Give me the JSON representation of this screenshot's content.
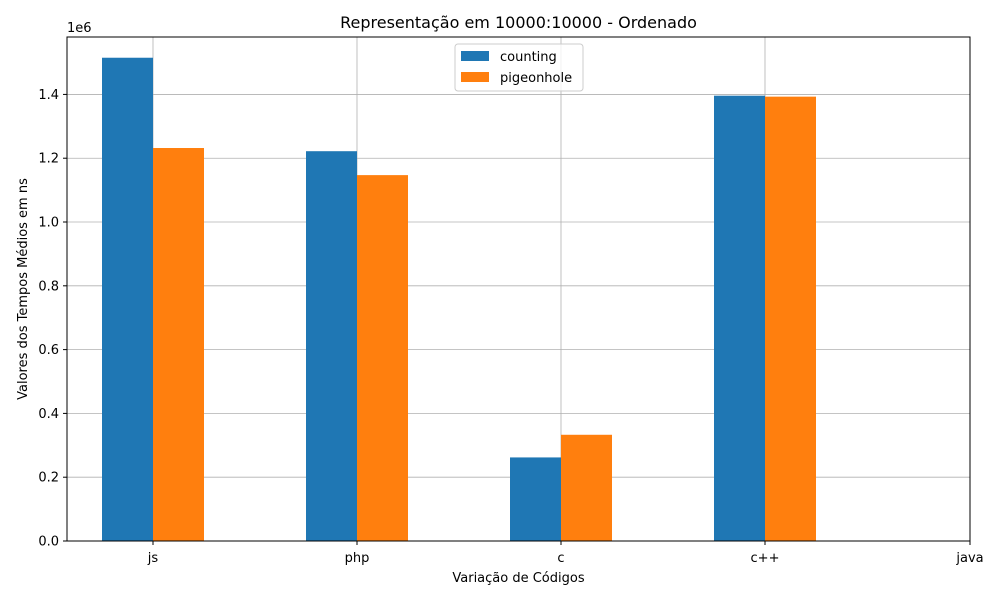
{
  "chart_data": {
    "type": "bar",
    "title": "Representação em 10000:10000 - Ordenado",
    "xlabel": "Variação de Códigos",
    "ylabel": "Valores dos Tempos Médios em ns",
    "y_offset_label": "1e6",
    "categories": [
      "js",
      "php",
      "c",
      "c++",
      "java"
    ],
    "series": [
      {
        "name": "counting",
        "color": "#1f77b4",
        "values": [
          1515000,
          1222000,
          262000,
          1396000,
          null
        ]
      },
      {
        "name": "pigeonhole",
        "color": "#ff7f0e",
        "values": [
          1232000,
          1147000,
          333000,
          1393000,
          null
        ]
      }
    ],
    "ylim": [
      0,
      1580000
    ],
    "yticks": [
      {
        "value": 0,
        "label": "0.0"
      },
      {
        "value": 200000,
        "label": "0.2"
      },
      {
        "value": 400000,
        "label": "0.4"
      },
      {
        "value": 600000,
        "label": "0.6"
      },
      {
        "value": 800000,
        "label": "0.8"
      },
      {
        "value": 1000000,
        "label": "1.0"
      },
      {
        "value": 1200000,
        "label": "1.2"
      },
      {
        "value": 1400000,
        "label": "1.4"
      }
    ],
    "grid": true,
    "legend_position": "top-center"
  }
}
